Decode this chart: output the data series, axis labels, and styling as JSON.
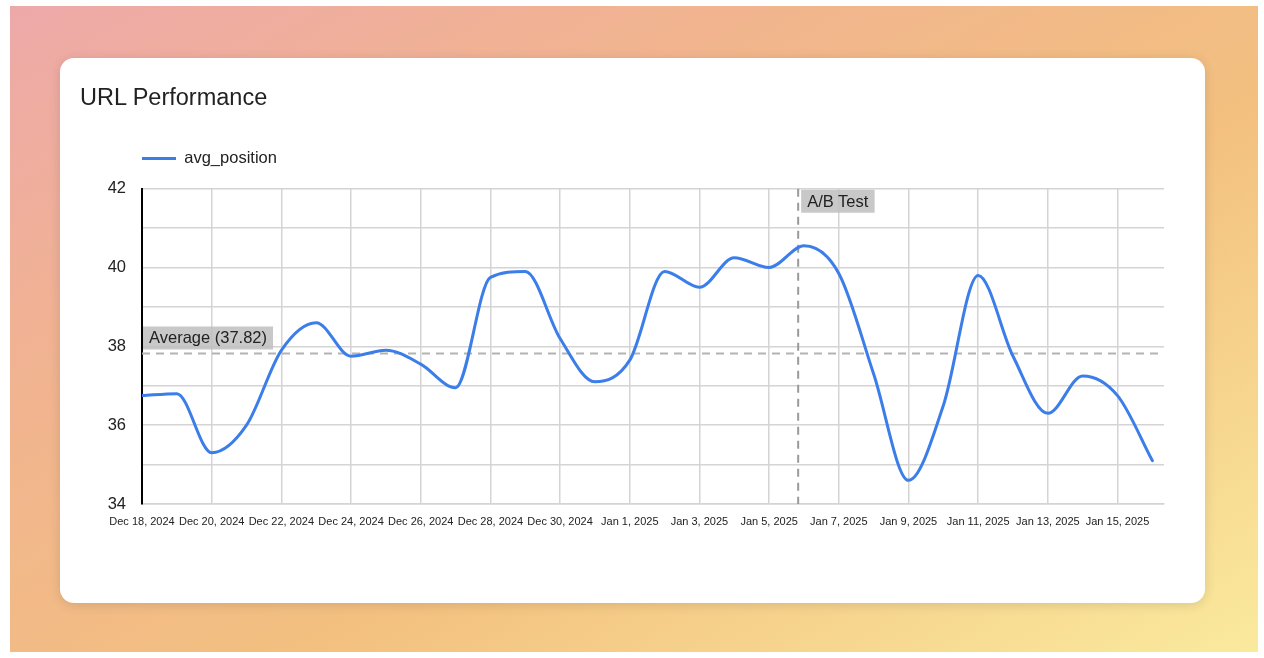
{
  "chart_data": {
    "type": "line",
    "title": "URL Performance",
    "x": [
      "2024-12-18",
      "2024-12-19",
      "2024-12-20",
      "2024-12-21",
      "2024-12-22",
      "2024-12-23",
      "2024-12-24",
      "2024-12-25",
      "2024-12-26",
      "2024-12-27",
      "2024-12-28",
      "2024-12-29",
      "2024-12-30",
      "2024-12-31",
      "2025-01-01",
      "2025-01-02",
      "2025-01-03",
      "2025-01-04",
      "2025-01-05",
      "2025-01-06",
      "2025-01-07",
      "2025-01-08",
      "2025-01-09",
      "2025-01-10",
      "2025-01-11",
      "2025-01-12",
      "2025-01-13",
      "2025-01-14",
      "2025-01-15",
      "2025-01-16"
    ],
    "series": [
      {
        "name": "avg_position",
        "color": "#3b7de9",
        "values": [
          36.75,
          36.8,
          35.3,
          36.0,
          37.9,
          38.6,
          37.75,
          37.9,
          37.55,
          36.95,
          39.75,
          39.9,
          38.2,
          37.1,
          37.65,
          39.9,
          39.5,
          40.25,
          40.0,
          40.55,
          39.85,
          37.3,
          34.6,
          36.5,
          39.8,
          37.75,
          36.3,
          37.25,
          36.75,
          35.1
        ]
      }
    ],
    "xlim": [
      "2024-12-18",
      "2025-01-16T08:00"
    ],
    "xticks": [
      {
        "value": "2024-12-18",
        "label": "Dec 18, 2024"
      },
      {
        "value": "2024-12-20",
        "label": "Dec 20, 2024"
      },
      {
        "value": "2024-12-22",
        "label": "Dec 22, 2024"
      },
      {
        "value": "2024-12-24",
        "label": "Dec 24, 2024"
      },
      {
        "value": "2024-12-26",
        "label": "Dec 26, 2024"
      },
      {
        "value": "2024-12-28",
        "label": "Dec 28, 2024"
      },
      {
        "value": "2024-12-30",
        "label": "Dec 30, 2024"
      },
      {
        "value": "2025-01-01",
        "label": "Jan 1, 2025"
      },
      {
        "value": "2025-01-03",
        "label": "Jan 3, 2025"
      },
      {
        "value": "2025-01-05",
        "label": "Jan 5, 2025"
      },
      {
        "value": "2025-01-07",
        "label": "Jan 7, 2025"
      },
      {
        "value": "2025-01-09",
        "label": "Jan 9, 2025"
      },
      {
        "value": "2025-01-11",
        "label": "Jan 11, 2025"
      },
      {
        "value": "2025-01-13",
        "label": "Jan 13, 2025"
      },
      {
        "value": "2025-01-15",
        "label": "Jan 15, 2025"
      }
    ],
    "ylim": [
      34,
      42
    ],
    "yticks": [
      34,
      {
        "value": 35,
        "label": null
      },
      36,
      {
        "value": 37,
        "label": null
      },
      38,
      {
        "value": 39,
        "label": null
      },
      40,
      {
        "value": 41,
        "label": null
      },
      42
    ],
    "grid": true,
    "legend": "top left",
    "ref_lines": [
      {
        "axis": "y",
        "value": 37.82,
        "label": "Average (37.82)",
        "color": "#b3b3b3",
        "line_style": "dashed"
      },
      {
        "axis": "x",
        "value": "2025-01-05T20:00",
        "label": "A/B Test",
        "color": "#9a9a9a",
        "line_style": "dashed"
      }
    ]
  }
}
